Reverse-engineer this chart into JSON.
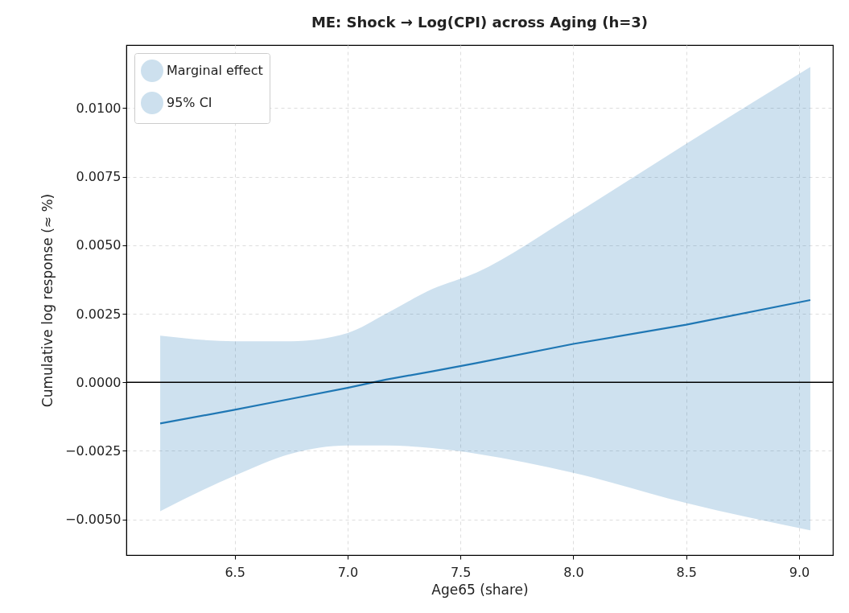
{
  "chart_data": {
    "type": "line",
    "title": "ME: Shock → Log(CPI) across Aging (h=3)",
    "xlabel": "Age65 (share)",
    "ylabel": "Cumulative log response (≈ %)",
    "x": [
      6.17,
      6.5,
      6.75,
      7.0,
      7.17,
      7.375,
      7.57,
      8.0,
      8.5,
      9.05
    ],
    "series": [
      {
        "name": "Marginal effect",
        "color": "#1f77b4",
        "values": [
          -0.0015,
          -0.001,
          -0.0006,
          -0.0002,
          0.0001,
          0.0004,
          0.0007,
          0.0014,
          0.0021,
          0.003
        ],
        "lower": [
          -0.0047,
          -0.0034,
          -0.0026,
          -0.0023,
          -0.0023,
          -0.0024,
          -0.0026,
          -0.0033,
          -0.0044,
          -0.0054
        ],
        "upper": [
          0.0017,
          0.0015,
          0.0015,
          0.0018,
          0.0025,
          0.0034,
          0.004,
          0.0061,
          0.0087,
          0.0115
        ]
      }
    ],
    "annotations": [
      "95% CI"
    ],
    "xlim": [
      6.02,
      9.15
    ],
    "ylim": [
      -0.0063,
      0.0123
    ],
    "xticks": [
      {
        "value": 6.5,
        "label": "6.5"
      },
      {
        "value": 7,
        "label": "7.0"
      },
      {
        "value": 7.5,
        "label": "7.5"
      },
      {
        "value": 8,
        "label": "8.0"
      },
      {
        "value": 8.5,
        "label": "8.5"
      },
      {
        "value": 9,
        "label": "9.0"
      }
    ],
    "yticks": [
      {
        "value": -0.005,
        "label": "−0.0050"
      },
      {
        "value": -0.0025,
        "label": "−0.0025"
      },
      {
        "value": 0,
        "label": "0.0000"
      },
      {
        "value": 0.0025,
        "label": "0.0025"
      },
      {
        "value": 0.005,
        "label": "0.0050"
      },
      {
        "value": 0.0075,
        "label": "0.0075"
      },
      {
        "value": 0.01,
        "label": "0.0100"
      }
    ],
    "ref_lines": [
      {
        "axis": "y",
        "value": 0,
        "color": "#000000"
      }
    ],
    "grid": true,
    "legend": "top left"
  }
}
